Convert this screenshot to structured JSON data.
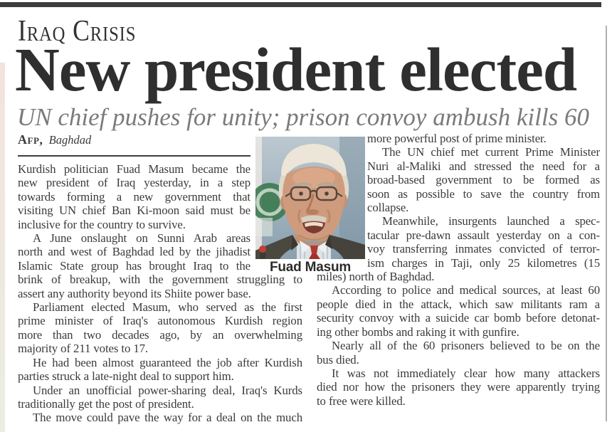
{
  "kicker": "Iraq Crisis",
  "headline": "New president elected",
  "subhead": "UN chief pushes for unity; prison convoy ambush kills 60",
  "byline": {
    "agency": "AFP,",
    "location": "Baghdad"
  },
  "photo": {
    "caption": "Fuad Masum",
    "subject": "portrait of Fuad Masum"
  },
  "colors": {
    "top_bar": "#3d3d3d",
    "headline_text": "#2f2f2f",
    "subhead_text": "#7a7a7a",
    "body_text": "#3c3b39",
    "photo_background": "#8fa3b0",
    "photo_suit": "#4a483f",
    "photo_tie": "#b03a31",
    "photo_emblem_green": "#3c7a50"
  },
  "columns": {
    "left": {
      "lines": [
        {
          "t": "Kurdish politician Fuad Masum became the",
          "w": "n",
          "j": true
        },
        {
          "t": "new president of Iraq yesterday, in a step",
          "w": "n",
          "j": true
        },
        {
          "t": "towards forming a new government that",
          "w": "n",
          "j": true
        },
        {
          "t": "visiting UN chief Ban Ki-moon said must be",
          "w": "n",
          "j": true
        },
        {
          "t": "inclusive for the country to survive.",
          "w": "n"
        },
        {
          "t": "A June onslaught on Sunni Arab areas",
          "w": "n",
          "j": true,
          "ind": true
        },
        {
          "t": "north and west of Baghdad led by the jihadist",
          "w": "n",
          "j": true
        },
        {
          "t": "Islamic State group has brought Iraq to the",
          "w": "n",
          "j": true
        },
        {
          "t": "brink of breakup, with the government struggling to",
          "w": "f",
          "j": true
        },
        {
          "t": "assert any authority beyond its Shiite power base.",
          "w": "f"
        },
        {
          "t": "Parliament elected Masum, who served as the first",
          "w": "f",
          "j": true,
          "ind": true
        },
        {
          "t": "prime minister of Iraq's autonomous Kurdish region",
          "w": "f",
          "j": true
        },
        {
          "t": "more than two decades ago, by an overwhelming",
          "w": "f",
          "j": true
        },
        {
          "t": "majority of 211 votes to 17.",
          "w": "f"
        },
        {
          "t": "He had been almost guaranteed the job after Kurdish",
          "w": "f",
          "j": true,
          "ind": true
        },
        {
          "t": "parties struck a late-night deal to support him.",
          "w": "f"
        },
        {
          "t": "Under an unofficial power-sharing deal, Iraq's Kurds",
          "w": "f",
          "j": true,
          "ind": true
        },
        {
          "t": "traditionally get the post of president.",
          "w": "f"
        },
        {
          "t": "The move could pave the way for a deal on the much",
          "w": "f",
          "j": true,
          "ind": true
        }
      ]
    },
    "right": {
      "lines": [
        {
          "t": "more powerful post of prime minister.",
          "w": "n"
        },
        {
          "t": "The UN chief met current Prime Minister",
          "w": "n",
          "j": true,
          "ind": true
        },
        {
          "t": "Nuri al-Maliki and stressed the need for a",
          "w": "n",
          "j": true
        },
        {
          "t": "broad-based government to be formed as",
          "w": "n",
          "j": true
        },
        {
          "t": "soon as possible to save the country from",
          "w": "n",
          "j": true
        },
        {
          "t": "collapse.",
          "w": "n"
        },
        {
          "t": "Meanwhile, insurgents launched a spec-",
          "w": "n",
          "j": true,
          "ind": true
        },
        {
          "t": "tacular pre-dawn assault yesterday on a con-",
          "w": "n",
          "j": true
        },
        {
          "t": "voy transferring inmates convicted of terror-",
          "w": "n",
          "j": true
        },
        {
          "t": "ism charges in Taji, only 25 kilometres (15",
          "w": "n",
          "j": true
        },
        {
          "t": "miles) north of Baghdad.",
          "w": "f"
        },
        {
          "t": "According to police and medical sources, at least 60",
          "w": "f",
          "j": true,
          "ind": true
        },
        {
          "t": "people died in the attack, which saw militants ram a",
          "w": "f",
          "j": true
        },
        {
          "t": "security convoy with a suicide car bomb before detonat-",
          "w": "f",
          "j": true
        },
        {
          "t": "ing other bombs and raking it with gunfire.",
          "w": "f"
        },
        {
          "t": "Nearly all of the 60 prisoners believed to be on the",
          "w": "f",
          "j": true,
          "ind": true
        },
        {
          "t": "bus died.",
          "w": "f"
        },
        {
          "t": "It was not immediately clear how many attackers",
          "w": "f",
          "j": true,
          "ind": true
        },
        {
          "t": "died nor how the prisoners they were apparently trying",
          "w": "f",
          "j": true
        },
        {
          "t": "to free were killed.",
          "w": "f"
        }
      ]
    }
  }
}
